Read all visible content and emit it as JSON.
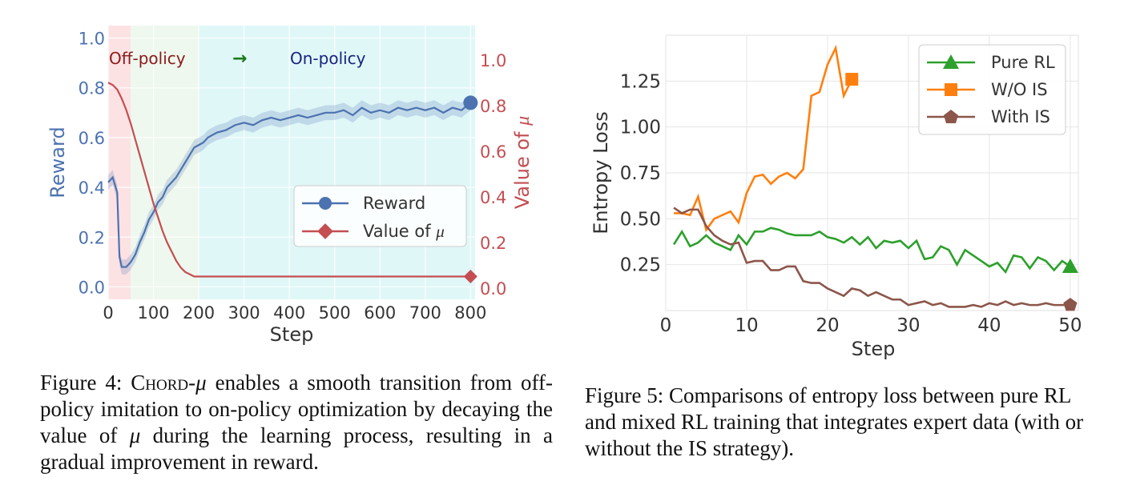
{
  "figure4": {
    "chart_data": {
      "type": "line",
      "xlabel": "Step",
      "ylabel_left": "Reward",
      "ylabel_right_prefix": "Value of ",
      "ylabel_right_symbol": "μ",
      "xlim": [
        0,
        810
      ],
      "ylim_left": [
        -0.05,
        1.05
      ],
      "ylim_right": [
        -0.05,
        1.15
      ],
      "x_ticks": [
        0,
        100,
        200,
        300,
        400,
        500,
        600,
        700,
        800
      ],
      "y_ticks_left": [
        0.0,
        0.2,
        0.4,
        0.6,
        0.8,
        1.0
      ],
      "y_ticks_right": [
        0.0,
        0.2,
        0.4,
        0.6,
        0.8,
        1.0
      ],
      "phase_labels": {
        "off": "Off-policy",
        "arrow": "→",
        "on": "On-policy"
      },
      "phases": [
        {
          "name": "off-policy",
          "x_range": [
            0,
            50
          ],
          "color": "#fde2e4"
        },
        {
          "name": "transition",
          "x_range": [
            50,
            200
          ],
          "color": "#eef8ee"
        },
        {
          "name": "on-policy",
          "x_range": [
            200,
            810
          ],
          "color": "#e0f7f8"
        }
      ],
      "series": [
        {
          "name": "Reward",
          "axis": "left",
          "color": "#4c72b0",
          "marker": "circle",
          "x": [
            0,
            10,
            20,
            25,
            30,
            40,
            50,
            60,
            70,
            80,
            90,
            100,
            110,
            120,
            130,
            140,
            150,
            160,
            170,
            180,
            190,
            200,
            210,
            220,
            240,
            260,
            280,
            300,
            320,
            340,
            360,
            380,
            400,
            420,
            440,
            460,
            480,
            500,
            520,
            540,
            560,
            580,
            600,
            620,
            640,
            660,
            680,
            700,
            720,
            740,
            760,
            780,
            800
          ],
          "y": [
            0.42,
            0.44,
            0.38,
            0.12,
            0.08,
            0.08,
            0.1,
            0.13,
            0.18,
            0.22,
            0.27,
            0.3,
            0.34,
            0.36,
            0.4,
            0.42,
            0.44,
            0.47,
            0.5,
            0.53,
            0.56,
            0.57,
            0.58,
            0.6,
            0.62,
            0.63,
            0.65,
            0.66,
            0.65,
            0.67,
            0.68,
            0.67,
            0.68,
            0.69,
            0.68,
            0.69,
            0.7,
            0.7,
            0.71,
            0.69,
            0.72,
            0.7,
            0.71,
            0.7,
            0.72,
            0.71,
            0.72,
            0.71,
            0.72,
            0.7,
            0.72,
            0.71,
            0.74
          ]
        },
        {
          "name": "Value of μ",
          "axis": "right",
          "color": "#c44e52",
          "marker": "diamond",
          "x": [
            0,
            10,
            20,
            30,
            40,
            50,
            60,
            70,
            80,
            90,
            100,
            110,
            120,
            130,
            140,
            150,
            160,
            170,
            180,
            190,
            200,
            210,
            800
          ],
          "y": [
            0.9,
            0.89,
            0.87,
            0.83,
            0.78,
            0.72,
            0.65,
            0.58,
            0.51,
            0.44,
            0.37,
            0.31,
            0.25,
            0.2,
            0.16,
            0.12,
            0.09,
            0.07,
            0.06,
            0.05,
            0.05,
            0.05,
            0.05
          ]
        }
      ]
    },
    "legend": [
      {
        "label": "Reward"
      },
      {
        "label_prefix": "Value of ",
        "label_symbol": "μ"
      }
    ],
    "caption": {
      "label": "Figure 4: ",
      "name_sc": "Chord",
      "name_sep": "-",
      "name_sym": "μ",
      "text_a": " enables a smooth transition from off-policy imitation to on-policy optimization by decaying the value of ",
      "sym": "μ",
      "text_b": " during the learning process, resulting in a gradual improvement in reward."
    }
  },
  "figure5": {
    "chart_data": {
      "type": "line",
      "xlabel": "Step",
      "ylabel": "Entropy Loss",
      "xlim": [
        0,
        51
      ],
      "ylim": [
        0,
        1.5
      ],
      "x_ticks": [
        0,
        10,
        20,
        30,
        40,
        50
      ],
      "y_ticks": [
        0.25,
        0.5,
        0.75,
        1.0,
        1.25
      ],
      "y_tick_labels": [
        "0.25",
        "0.50",
        "0.75",
        "1.00",
        "1.25"
      ],
      "series": [
        {
          "name": "Pure RL",
          "color": "#2ca02c",
          "marker": "triangle",
          "x": [
            1,
            2,
            3,
            4,
            5,
            6,
            7,
            8,
            9,
            10,
            11,
            12,
            13,
            14,
            15,
            16,
            17,
            18,
            19,
            20,
            21,
            22,
            23,
            24,
            25,
            26,
            27,
            28,
            29,
            30,
            31,
            32,
            33,
            34,
            35,
            36,
            37,
            38,
            39,
            40,
            41,
            42,
            43,
            44,
            45,
            46,
            47,
            48,
            49,
            50
          ],
          "y": [
            0.36,
            0.43,
            0.35,
            0.37,
            0.41,
            0.37,
            0.35,
            0.33,
            0.41,
            0.36,
            0.43,
            0.43,
            0.45,
            0.44,
            0.42,
            0.41,
            0.41,
            0.41,
            0.43,
            0.4,
            0.39,
            0.37,
            0.4,
            0.36,
            0.4,
            0.34,
            0.38,
            0.37,
            0.38,
            0.34,
            0.38,
            0.28,
            0.29,
            0.35,
            0.33,
            0.25,
            0.33,
            0.3,
            0.27,
            0.24,
            0.26,
            0.21,
            0.3,
            0.29,
            0.23,
            0.29,
            0.27,
            0.22,
            0.27,
            0.24
          ]
        },
        {
          "name": "W/O IS",
          "color": "#ff7f0e",
          "marker": "square",
          "x": [
            1,
            2,
            3,
            4,
            5,
            6,
            7,
            8,
            9,
            10,
            11,
            12,
            13,
            14,
            15,
            16,
            17,
            18,
            19,
            20,
            21,
            22,
            23
          ],
          "y": [
            0.53,
            0.53,
            0.52,
            0.62,
            0.44,
            0.5,
            0.52,
            0.54,
            0.48,
            0.64,
            0.73,
            0.74,
            0.69,
            0.73,
            0.75,
            0.72,
            0.77,
            1.17,
            1.19,
            1.34,
            1.43,
            1.17,
            1.26
          ]
        },
        {
          "name": "With IS",
          "color": "#8c564b",
          "marker": "pentagon",
          "x": [
            1,
            2,
            3,
            4,
            5,
            6,
            7,
            8,
            9,
            10,
            11,
            12,
            13,
            14,
            15,
            16,
            17,
            18,
            19,
            20,
            21,
            22,
            23,
            24,
            25,
            26,
            27,
            28,
            29,
            30,
            31,
            32,
            33,
            34,
            35,
            36,
            37,
            38,
            39,
            40,
            41,
            42,
            43,
            44,
            45,
            46,
            47,
            48,
            49,
            50
          ],
          "y": [
            0.56,
            0.53,
            0.55,
            0.55,
            0.46,
            0.41,
            0.38,
            0.36,
            0.37,
            0.26,
            0.27,
            0.27,
            0.22,
            0.22,
            0.24,
            0.24,
            0.16,
            0.15,
            0.15,
            0.12,
            0.1,
            0.08,
            0.12,
            0.11,
            0.08,
            0.1,
            0.08,
            0.06,
            0.06,
            0.03,
            0.04,
            0.05,
            0.03,
            0.04,
            0.02,
            0.02,
            0.02,
            0.03,
            0.02,
            0.04,
            0.03,
            0.05,
            0.03,
            0.04,
            0.03,
            0.03,
            0.04,
            0.03,
            0.03,
            0.03
          ]
        }
      ]
    },
    "legend": [
      {
        "label": "Pure RL"
      },
      {
        "label": "W/O IS"
      },
      {
        "label": "With IS"
      }
    ],
    "caption": "Figure 5: Comparisons of entropy loss between pure RL and mixed RL training that integrates expert data (with or without the IS strategy)."
  }
}
